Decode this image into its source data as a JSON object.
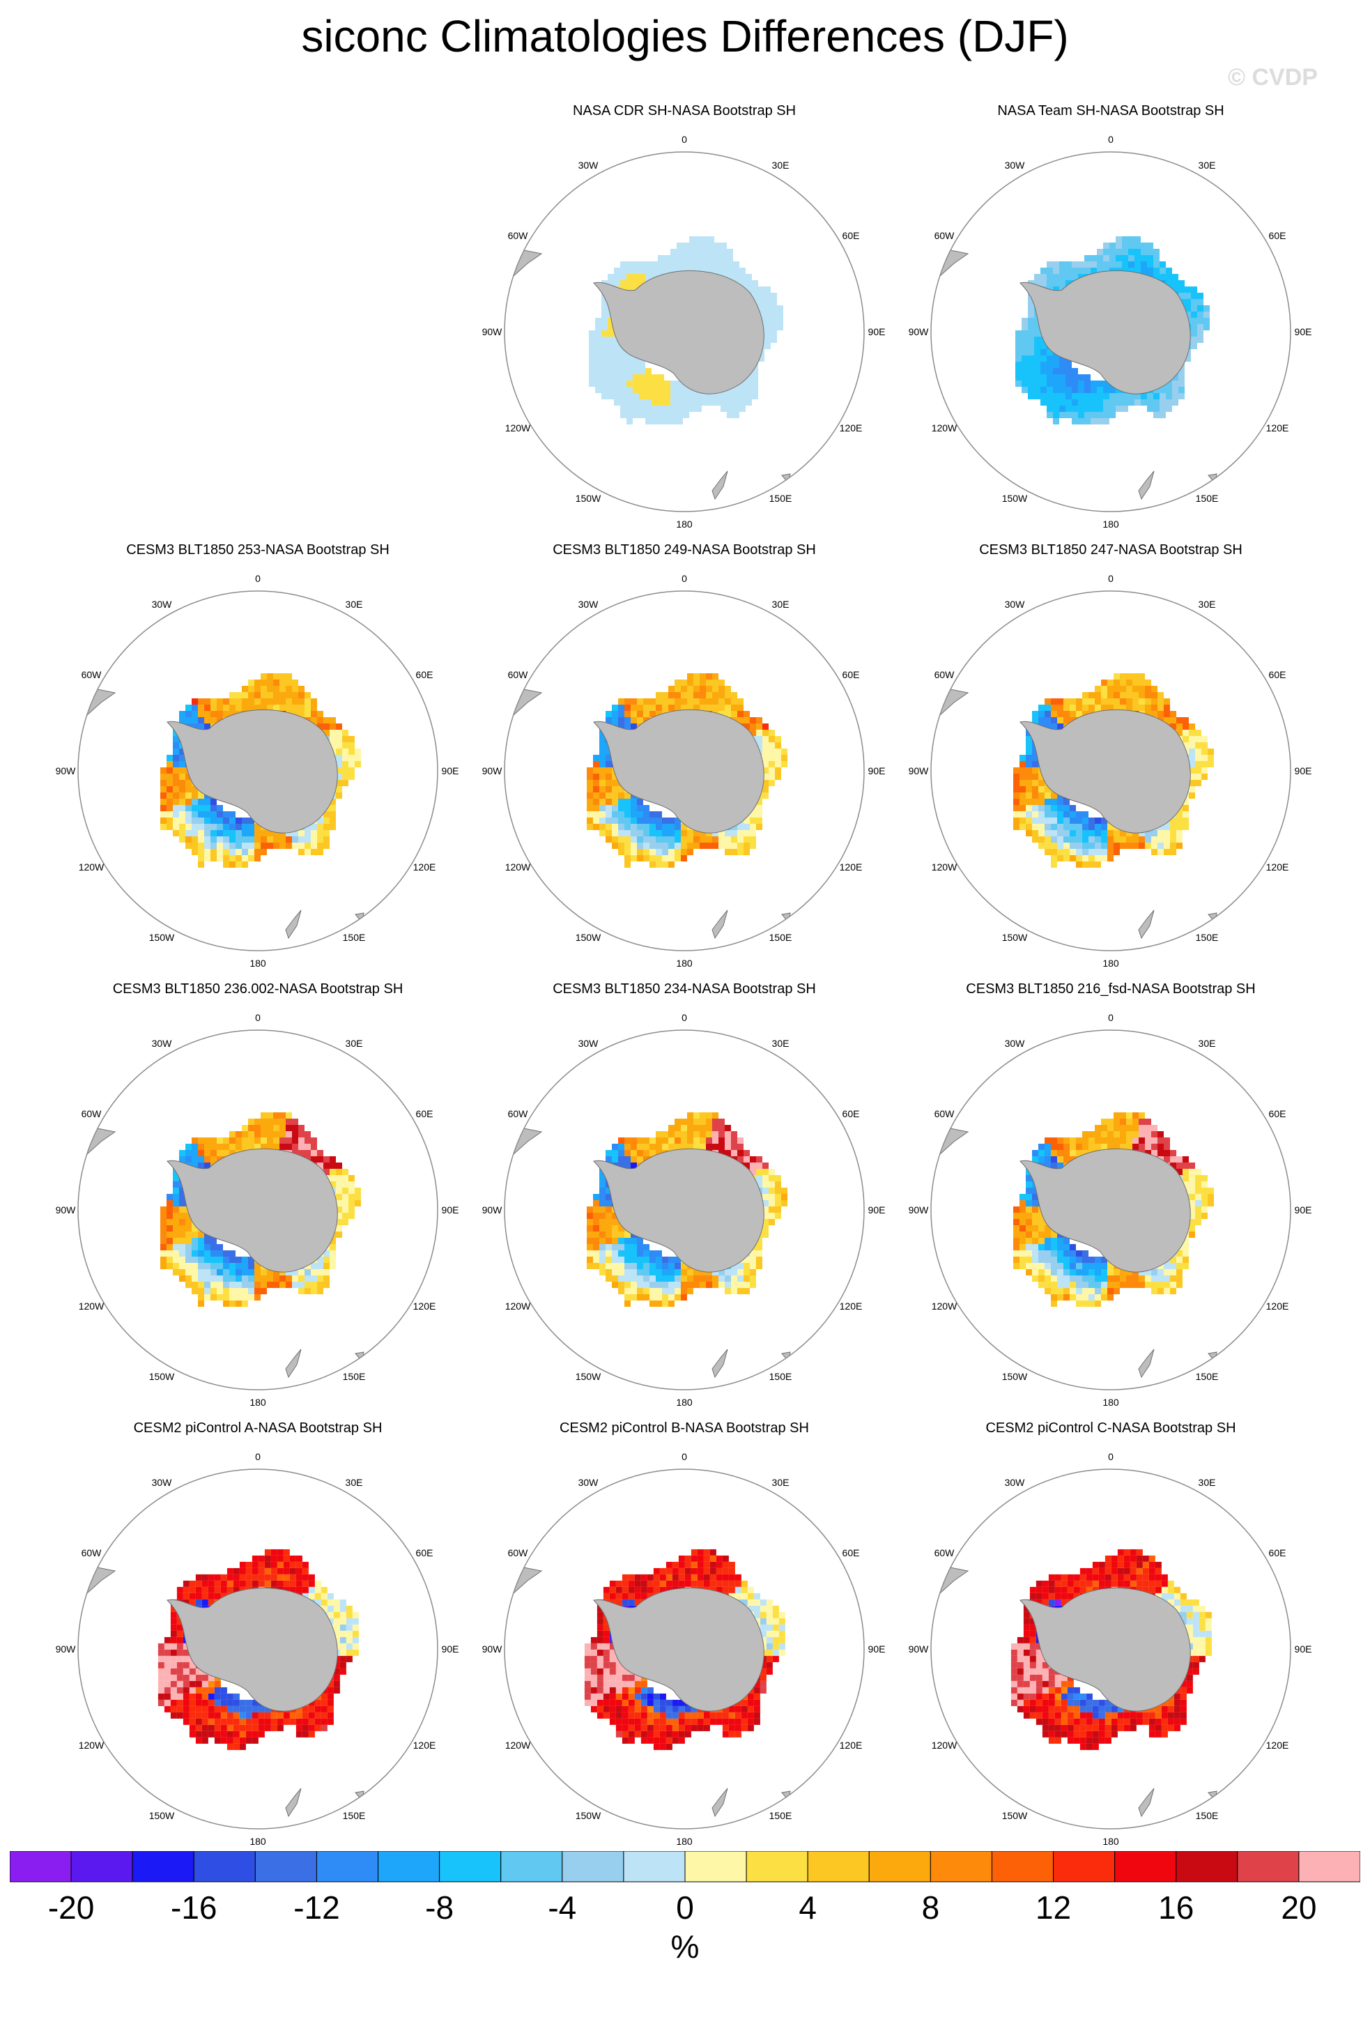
{
  "chart_data": {
    "type": "heatmap",
    "title": "siconc Climatologies Differences (DJF)",
    "watermark": "© CVDP",
    "projection": "south polar stereographic",
    "longitude_labels": [
      "0",
      "30E",
      "60E",
      "90E",
      "120E",
      "150E",
      "180",
      "150W",
      "120W",
      "90W",
      "60W",
      "30W"
    ],
    "colorbar": {
      "units": "%",
      "levels": [
        -20,
        -18,
        -16,
        -14,
        -12,
        -10,
        -8,
        -6,
        -4,
        -2,
        0,
        2,
        4,
        6,
        8,
        10,
        12,
        14,
        16,
        18,
        20
      ],
      "tick_labels": [
        "-20",
        "-16",
        "-12",
        "-8",
        "-4",
        "0",
        "4",
        "8",
        "12",
        "16",
        "20"
      ],
      "colors": [
        "#8a1ef0",
        "#5c19ef",
        "#1b19f5",
        "#2f4fe4",
        "#3a6fe6",
        "#2f8cf7",
        "#1ea6fb",
        "#18c3fb",
        "#61c8f2",
        "#98cfee",
        "#bde3f7",
        "#fff7a8",
        "#fce043",
        "#fcc722",
        "#fca90e",
        "#fd8a0a",
        "#fd6108",
        "#fb2c0c",
        "#f0060e",
        "#c90a12",
        "#df4249",
        "#fcb2b5"
      ]
    },
    "panels": [
      {
        "title": "NASA CDR SH-NASA Bootstrap SH",
        "ice_edge_radius": 0.45,
        "pattern": "cdr"
      },
      {
        "title": "NASA Team SH-NASA Bootstrap SH",
        "ice_edge_radius": 0.45,
        "pattern": "team"
      },
      {
        "title": "CESM3 BLT1850 253-NASA Bootstrap SH",
        "ice_edge_radius": 0.46,
        "pattern": "cesm3"
      },
      {
        "title": "CESM3 BLT1850 249-NASA Bootstrap SH",
        "ice_edge_radius": 0.46,
        "pattern": "cesm3"
      },
      {
        "title": "CESM3 BLT1850 247-NASA Bootstrap SH",
        "ice_edge_radius": 0.46,
        "pattern": "cesm3"
      },
      {
        "title": "CESM3 BLT1850 236.002-NASA Bootstrap SH",
        "ice_edge_radius": 0.46,
        "pattern": "cesm3b"
      },
      {
        "title": "CESM3 BLT1850 234-NASA Bootstrap SH",
        "ice_edge_radius": 0.46,
        "pattern": "cesm3b"
      },
      {
        "title": "CESM3 BLT1850 216_fsd-NASA Bootstrap SH",
        "ice_edge_radius": 0.46,
        "pattern": "cesm3b"
      },
      {
        "title": "CESM2 piControl A-NASA Bootstrap SH",
        "ice_edge_radius": 0.47,
        "pattern": "cesm2"
      },
      {
        "title": "CESM2 piControl B-NASA Bootstrap SH",
        "ice_edge_radius": 0.47,
        "pattern": "cesm2"
      },
      {
        "title": "CESM2 piControl C-NASA Bootstrap SH",
        "ice_edge_radius": 0.47,
        "pattern": "cesm2"
      }
    ]
  }
}
